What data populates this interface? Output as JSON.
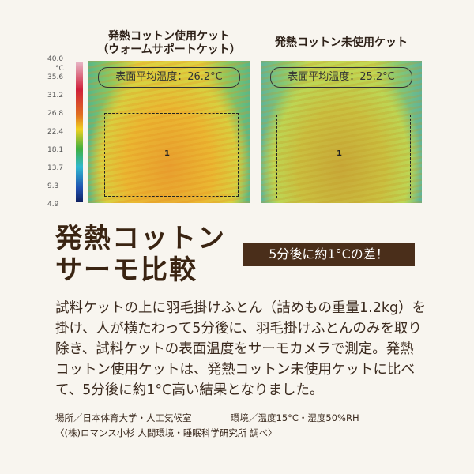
{
  "captions": {
    "left_line1": "発熱コットン使用ケット",
    "left_line2": "（ウォームサポートケット）",
    "right": "発熱コットン未使用ケット"
  },
  "scale": {
    "unit": "°C",
    "ticks": [
      "40.0",
      "35.6",
      "31.2",
      "26.8",
      "22.4",
      "18.1",
      "13.7",
      "9.3",
      "4.9"
    ]
  },
  "thermo_left": {
    "label": "表面平均温度：26.2°C",
    "roi": "1"
  },
  "thermo_right": {
    "label": "表面平均温度：25.2°C",
    "roi": "1"
  },
  "headline": {
    "line1": "発熱コットン",
    "line2": "サーモ比較"
  },
  "badge": "5分後に約1°Cの差！",
  "body": "試料ケットの上に羽毛掛けふとん（詰めもの重量1.2kg）を掛け、人が横たわって5分後に、羽毛掛けふとんのみを取り除き、試料ケットの表面温度をサーモカメラで測定。発熱コットン使用ケットは、発熱コットン未使用ケットに比べて、5分後に約1°C高い結果となりました。",
  "notes": {
    "place": "場所／日本体育大学・人工気候室",
    "env": "環境／温度15°C・湿度50%RH",
    "source": "〈(株)ロマンス小杉 人間環境・睡眠科学研究所 調べ〉"
  },
  "colors": {
    "badge": "#4a2e1a",
    "background": "#f8f5ef"
  }
}
